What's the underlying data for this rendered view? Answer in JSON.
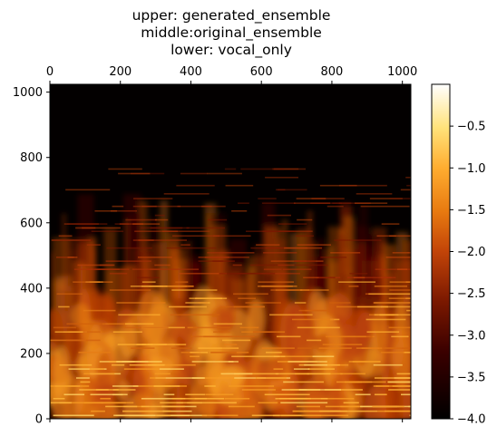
{
  "chart_data": {
    "type": "heatmap",
    "title": [
      "upper: generated_ensemble",
      "middle:original_ensemble",
      "lower: vocal_only"
    ],
    "x_ticks": [
      0,
      200,
      400,
      600,
      800,
      1000
    ],
    "y_ticks": [
      0,
      200,
      400,
      600,
      800,
      1000
    ],
    "xlim": [
      0,
      1024
    ],
    "ylim": [
      0,
      1024
    ],
    "x_tick_position": "top",
    "colorbar": {
      "ticks": [
        -0.5,
        -1.0,
        -1.5,
        -2.0,
        -2.5,
        -3.0,
        -3.5,
        -4.0
      ],
      "tick_labels": [
        "−0.5",
        "−1.0",
        "−1.5",
        "−2.0",
        "−2.5",
        "−3.0",
        "−3.5",
        "−4.0"
      ],
      "range": [
        -4.0,
        0.0
      ],
      "colormap": "afmhot"
    },
    "colors": {
      "low": "#000000",
      "mid": "#c0400a",
      "high": "#ffffff"
    }
  }
}
